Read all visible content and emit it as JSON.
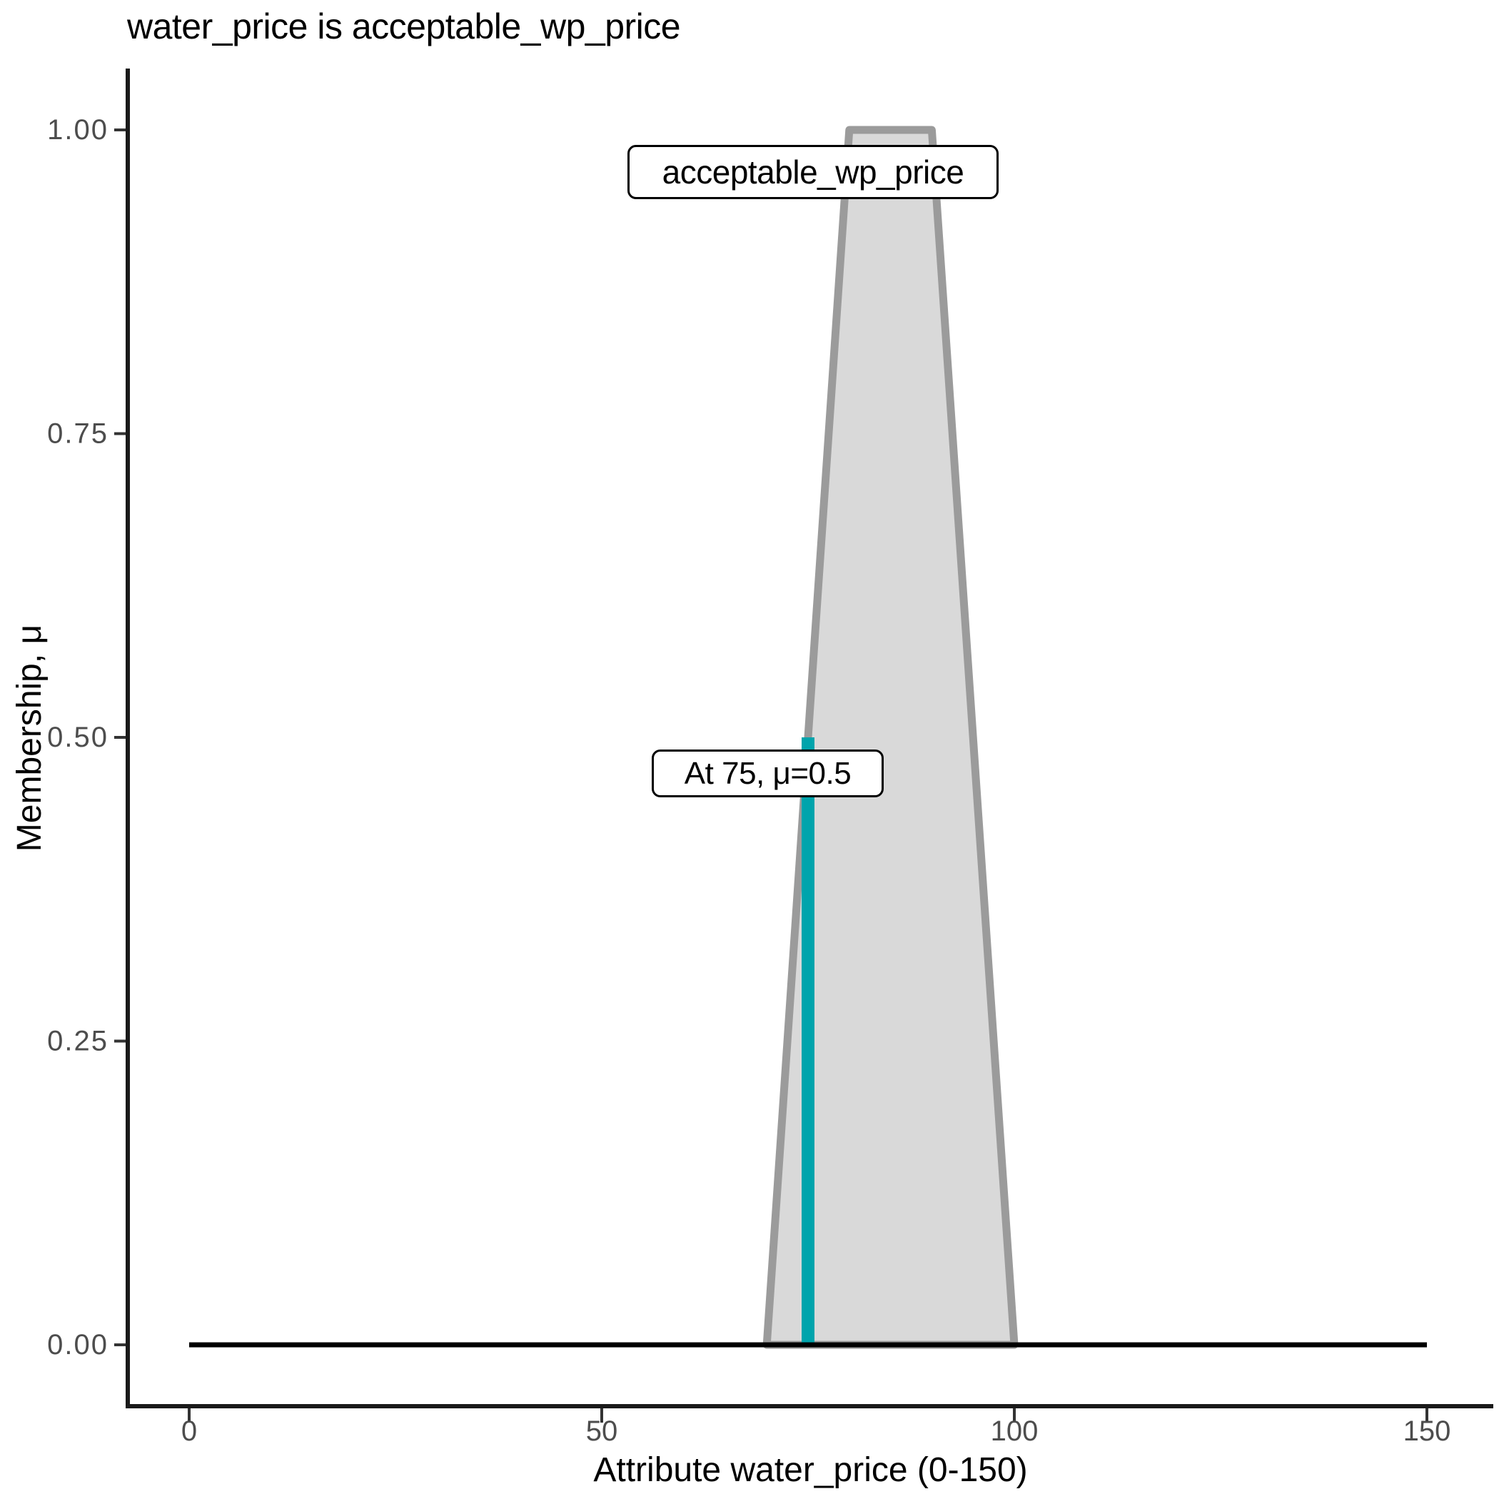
{
  "title": "water_price is acceptable_wp_price",
  "axes": {
    "x": {
      "title": "Attribute water_price (0-150)",
      "range": [
        0,
        150
      ],
      "ticks": [
        {
          "value": 0,
          "label": "0"
        },
        {
          "value": 50,
          "label": "50"
        },
        {
          "value": 100,
          "label": "100"
        },
        {
          "value": 150,
          "label": "150"
        }
      ]
    },
    "y": {
      "title": "Membership, μ",
      "range": [
        0,
        1
      ],
      "ticks": [
        {
          "value": 0,
          "label": "0.00"
        },
        {
          "value": 0.25,
          "label": "0.25"
        },
        {
          "value": 0.5,
          "label": "0.50"
        },
        {
          "value": 0.75,
          "label": "0.75"
        },
        {
          "value": 1,
          "label": "1.00"
        }
      ]
    }
  },
  "annotations": {
    "set_label": "acceptable_wp_price",
    "marker_label": "At 75, μ=0.5"
  },
  "colors": {
    "membership_fill": "#D9D9D9",
    "membership_stroke": "#9B9B9B",
    "marker_line": "#00A4AC",
    "baseline": "#000000",
    "tick_label": "#4D4D4D",
    "axis_line": "#1A1A1A",
    "tick_mark": "#333333"
  },
  "chart_data": {
    "type": "area",
    "title": "water_price is acceptable_wp_price",
    "xlabel": "Attribute water_price (0-150)",
    "ylabel": "Membership, μ",
    "xlim": [
      0,
      150
    ],
    "ylim": [
      0,
      1
    ],
    "grid": false,
    "legend": false,
    "x_ticks": [
      0,
      50,
      100,
      150
    ],
    "y_ticks": [
      0,
      0.25,
      0.5,
      0.75,
      1
    ],
    "series": [
      {
        "name": "acceptable_wp_price",
        "kind": "trapezoidal_membership_function",
        "polygon_points": [
          [
            70,
            0
          ],
          [
            80,
            1
          ],
          [
            90,
            1
          ],
          [
            100,
            0
          ]
        ],
        "x": [
          0,
          70,
          75,
          80,
          90,
          100,
          150
        ],
        "y": [
          0,
          0,
          0.5,
          1,
          1,
          0,
          0
        ]
      }
    ],
    "baseline": {
      "mu": 0,
      "x_range": [
        0,
        150
      ]
    },
    "marker": {
      "x": 75,
      "mu": 0.5,
      "label": "At 75, μ=0.5"
    }
  }
}
